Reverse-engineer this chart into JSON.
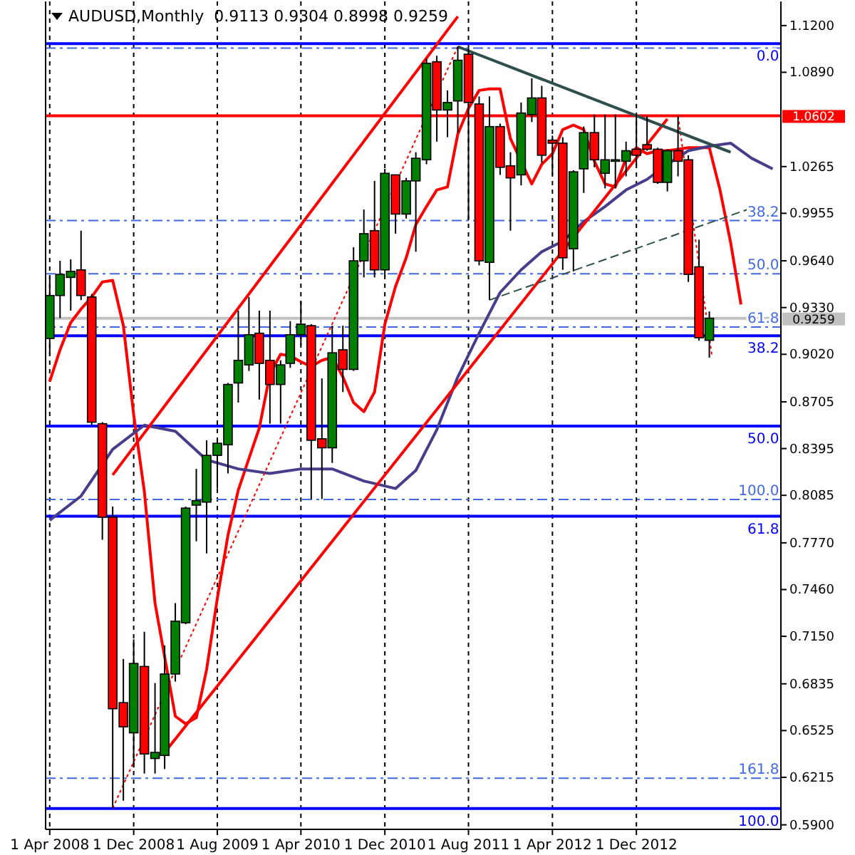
{
  "chart_data": {
    "type": "candlestick",
    "title": "AUDUSD,Monthly  0.9113 0.9304 0.8998 0.9259",
    "x": [
      "2008-04",
      "2008-05",
      "2008-06",
      "2008-07",
      "2008-08",
      "2008-09",
      "2008-10",
      "2008-11",
      "2008-12",
      "2009-01",
      "2009-02",
      "2009-03",
      "2009-04",
      "2009-05",
      "2009-06",
      "2009-07",
      "2009-08",
      "2009-09",
      "2009-10",
      "2009-11",
      "2009-12",
      "2010-01",
      "2010-02",
      "2010-03",
      "2010-04",
      "2010-05",
      "2010-06",
      "2010-07",
      "2010-08",
      "2010-09",
      "2010-10",
      "2010-11",
      "2010-12",
      "2011-01",
      "2011-02",
      "2011-03",
      "2011-04",
      "2011-05",
      "2011-06",
      "2011-07",
      "2011-08",
      "2011-09",
      "2011-10",
      "2011-11",
      "2011-12",
      "2012-01",
      "2012-02",
      "2012-03",
      "2012-04",
      "2012-05",
      "2012-06",
      "2012-07",
      "2012-08",
      "2012-09",
      "2012-10",
      "2012-11",
      "2012-12",
      "2013-01",
      "2013-02",
      "2013-03",
      "2013-04",
      "2013-05",
      "2013-06",
      "2013-07"
    ],
    "ohlc": [
      [
        0.9125,
        0.954,
        0.902,
        0.941
      ],
      [
        0.941,
        0.964,
        0.926,
        0.955
      ],
      [
        0.953,
        0.965,
        0.931,
        0.957
      ],
      [
        0.958,
        0.984,
        0.938,
        0.941
      ],
      [
        0.94,
        0.942,
        0.855,
        0.857
      ],
      [
        0.856,
        0.857,
        0.779,
        0.794
      ],
      [
        0.794,
        0.801,
        0.601,
        0.667
      ],
      [
        0.671,
        0.7,
        0.606,
        0.655
      ],
      [
        0.651,
        0.713,
        0.628,
        0.697
      ],
      [
        0.695,
        0.718,
        0.624,
        0.637
      ],
      [
        0.634,
        0.684,
        0.624,
        0.638
      ],
      [
        0.636,
        0.709,
        0.627,
        0.69
      ],
      [
        0.69,
        0.737,
        0.685,
        0.725
      ],
      [
        0.724,
        0.801,
        0.723,
        0.8
      ],
      [
        0.802,
        0.826,
        0.778,
        0.805
      ],
      [
        0.804,
        0.845,
        0.77,
        0.835
      ],
      [
        0.835,
        0.846,
        0.813,
        0.843
      ],
      [
        0.842,
        0.883,
        0.823,
        0.882
      ],
      [
        0.883,
        0.931,
        0.87,
        0.898
      ],
      [
        0.895,
        0.94,
        0.891,
        0.915
      ],
      [
        0.916,
        0.931,
        0.872,
        0.896
      ],
      [
        0.898,
        0.931,
        0.856,
        0.882
      ],
      [
        0.882,
        0.898,
        0.856,
        0.895
      ],
      [
        0.896,
        0.924,
        0.893,
        0.915
      ],
      [
        0.915,
        0.937,
        0.908,
        0.922
      ],
      [
        0.921,
        0.922,
        0.806,
        0.845
      ],
      [
        0.846,
        0.886,
        0.806,
        0.84
      ],
      [
        0.84,
        0.921,
        0.83,
        0.903
      ],
      [
        0.905,
        0.921,
        0.877,
        0.892
      ],
      [
        0.892,
        0.973,
        0.891,
        0.964
      ],
      [
        0.964,
        0.998,
        0.953,
        0.982
      ],
      [
        0.984,
        1.017,
        0.953,
        0.958
      ],
      [
        0.958,
        1.025,
        0.953,
        1.022
      ],
      [
        1.021,
        1.021,
        0.982,
        0.995
      ],
      [
        0.995,
        1.019,
        0.992,
        1.017
      ],
      [
        1.017,
        1.036,
        0.97,
        1.032
      ],
      [
        1.031,
        1.098,
        1.028,
        1.095
      ],
      [
        1.096,
        1.1,
        1.043,
        1.064
      ],
      [
        1.064,
        1.077,
        1.046,
        1.069
      ],
      [
        1.07,
        1.106,
        1.049,
        1.097
      ],
      [
        1.101,
        1.105,
        0.991,
        1.069
      ],
      [
        1.068,
        1.073,
        0.961,
        0.964
      ],
      [
        0.963,
        1.073,
        0.938,
        1.053
      ],
      [
        1.053,
        1.055,
        1.021,
        1.026
      ],
      [
        1.027,
        1.036,
        0.984,
        1.019
      ],
      [
        1.021,
        1.069,
        1.014,
        1.062
      ],
      [
        1.061,
        1.085,
        1.056,
        1.072
      ],
      [
        1.072,
        1.08,
        1.029,
        1.034
      ],
      [
        1.044,
        1.047,
        1.021,
        1.042
      ],
      [
        1.042,
        1.046,
        0.958,
        0.966
      ],
      [
        0.972,
        1.024,
        0.957,
        1.023
      ],
      [
        1.025,
        1.053,
        1.009,
        1.049
      ],
      [
        1.049,
        1.061,
        1.026,
        1.031
      ],
      [
        1.022,
        1.061,
        1.012,
        1.031
      ],
      [
        1.03,
        1.061,
        1.012,
        1.031
      ],
      [
        1.03,
        1.043,
        1.02,
        1.037
      ],
      [
        1.038,
        1.061,
        1.027,
        1.034
      ],
      [
        1.041,
        1.06,
        1.037,
        1.038
      ],
      [
        1.038,
        1.039,
        1.015,
        1.016
      ],
      [
        1.016,
        1.038,
        1.01,
        1.037
      ],
      [
        1.037,
        1.06,
        1.02,
        1.03
      ],
      [
        1.031,
        1.034,
        0.95,
        0.955
      ],
      [
        0.96,
        0.978,
        0.911,
        0.913
      ],
      [
        0.9113,
        0.9304,
        0.8998,
        0.9259
      ]
    ],
    "series": [
      {
        "type": "line",
        "color": "#ff0000",
        "line_style": "solid",
        "x": [
          "2008-04",
          "2008-05",
          "2008-06",
          "2008-07",
          "2008-08",
          "2008-09",
          "2008-10",
          "2008-11",
          "2008-12",
          "2009-01",
          "2009-02",
          "2009-04",
          "2009-05",
          "2009-06",
          "2009-07",
          "2009-08",
          "2009-09",
          "2009-10",
          "2009-11",
          "2009-12",
          "2010-01",
          "2010-02",
          "2010-03",
          "2010-04",
          "2010-05",
          "2010-06",
          "2010-07",
          "2010-08",
          "2010-09",
          "2010-10",
          "2010-11",
          "2010-12",
          "2011-01",
          "2011-02",
          "2011-03",
          "2011-04",
          "2011-05",
          "2011-06",
          "2011-07",
          "2011-08",
          "2011-09",
          "2011-10",
          "2011-11",
          "2011-12",
          "2012-02",
          "2012-03",
          "2012-04",
          "2012-05",
          "2012-06",
          "2012-07",
          "2012-08",
          "2012-09",
          "2012-10",
          "2012-11",
          "2012-12",
          "2013-01",
          "2013-02",
          "2013-03",
          "2013-04",
          "2013-05",
          "2013-06",
          "2013-07",
          "2013-08",
          "2013-09",
          "2013-10"
        ],
        "values": [
          0.884,
          0.905,
          0.923,
          0.932,
          0.94,
          0.95,
          0.951,
          0.921,
          0.862,
          0.811,
          0.737,
          0.662,
          0.657,
          0.661,
          0.693,
          0.74,
          0.782,
          0.812,
          0.833,
          0.853,
          0.889,
          0.902,
          0.901,
          0.897,
          0.894,
          0.898,
          0.9,
          0.887,
          0.87,
          0.864,
          0.877,
          0.922,
          0.947,
          0.966,
          0.988,
          1.0,
          1.011,
          1.013,
          1.048,
          1.065,
          1.077,
          1.078,
          1.078,
          1.045,
          1.015,
          1.028,
          1.035,
          1.051,
          1.054,
          1.051,
          1.03,
          1.015,
          1.013,
          1.032,
          1.039,
          1.035,
          1.037,
          1.037,
          1.038,
          1.039,
          1.039,
          1.039,
          1.011,
          0.976,
          0.935
        ]
      },
      {
        "type": "line",
        "color": "#483d8b",
        "line_style": "solid",
        "x": [
          "2008-04",
          "2008-07",
          "2008-10",
          "2009-01",
          "2009-04",
          "2009-07",
          "2009-10",
          "2010-01",
          "2010-04",
          "2010-07",
          "2010-10",
          "2011-01",
          "2011-03",
          "2011-05",
          "2011-07",
          "2011-09",
          "2011-11",
          "2012-01",
          "2012-03",
          "2012-05",
          "2012-07",
          "2012-09",
          "2012-11",
          "2013-01",
          "2013-03",
          "2013-05",
          "2013-07",
          "2013-09",
          "2013-11",
          "2014-01"
        ],
        "values": [
          0.792,
          0.808,
          0.839,
          0.855,
          0.851,
          0.832,
          0.826,
          0.823,
          0.826,
          0.826,
          0.818,
          0.813,
          0.825,
          0.852,
          0.887,
          0.916,
          0.943,
          0.958,
          0.97,
          0.977,
          0.99,
          1.0,
          1.011,
          1.018,
          1.028,
          1.037,
          1.04,
          1.042,
          1.032,
          1.025
        ]
      },
      {
        "type": "line",
        "color": "#ff0000",
        "line_style": "solid",
        "x": [
          "2008-10",
          "2011-07"
        ],
        "values": [
          0.822,
          1.126
        ]
      },
      {
        "type": "line",
        "color": "#ff0000",
        "line_style": "solid",
        "x": [
          "2009-03",
          "2013-03"
        ],
        "values": [
          0.638,
          1.058
        ]
      },
      {
        "type": "line",
        "color": "#ff0000",
        "line_style": "dotted",
        "x": [
          "2008-10",
          "2011-07"
        ],
        "values": [
          0.601,
          1.106
        ]
      },
      {
        "type": "line",
        "color": "#ff0000",
        "line_style": "dotted",
        "x": [
          "2013-04",
          "2013-07-08"
        ],
        "values": [
          1.06,
          0.902
        ]
      },
      {
        "type": "line",
        "color": "#2f4f4f",
        "line_style": "solid",
        "x": [
          "2011-07",
          "2013-09"
        ],
        "values": [
          1.106,
          1.036
        ]
      },
      {
        "type": "line",
        "color": "#2f4f4f",
        "line_style": "dashed",
        "x": [
          "2011-10",
          "2013-11"
        ],
        "values": [
          0.938,
          0.999
        ]
      }
    ],
    "ref_lines": [
      {
        "axis": "y",
        "value": 1.108,
        "color": "#0000ff",
        "line_style": "solid"
      },
      {
        "axis": "y",
        "value": 0.9143,
        "color": "#0000ff",
        "line_style": "solid"
      },
      {
        "axis": "y",
        "value": 0.8544,
        "color": "#0000ff",
        "line_style": "solid"
      },
      {
        "axis": "y",
        "value": 0.7946,
        "color": "#0000ff",
        "line_style": "solid"
      },
      {
        "axis": "y",
        "value": 0.6008,
        "color": "#0000ff",
        "line_style": "solid"
      },
      {
        "axis": "y",
        "value": 1.105,
        "color": "#4169e1",
        "line_style": "dashed"
      },
      {
        "axis": "y",
        "value": 0.9907,
        "color": "#4169e1",
        "line_style": "dashed"
      },
      {
        "axis": "y",
        "value": 0.9554,
        "color": "#4169e1",
        "line_style": "dashed"
      },
      {
        "axis": "y",
        "value": 0.9201,
        "color": "#4169e1",
        "line_style": "dashed"
      },
      {
        "axis": "y",
        "value": 0.8058,
        "color": "#4169e1",
        "line_style": "dashed"
      },
      {
        "axis": "y",
        "value": 0.6209,
        "color": "#4169e1",
        "line_style": "dashed"
      },
      {
        "axis": "y",
        "value": 1.0602,
        "label": "1.0602",
        "color": "#ff0000",
        "line_style": "solid"
      },
      {
        "axis": "y",
        "value": 0.9259,
        "label": "0.9259",
        "color": "#c0c0c0",
        "line_style": "solid"
      }
    ],
    "annotations": [
      {
        "text": "0.0",
        "x": "2014-01-20",
        "y": 1.108
      },
      {
        "text": "38.2",
        "x": "2014-01-20",
        "y": 0.9143
      },
      {
        "text": "50.0",
        "x": "2014-01-20",
        "y": 0.8544
      },
      {
        "text": "61.8",
        "x": "2014-01-20",
        "y": 0.7946
      },
      {
        "text": "100.0",
        "x": "2014-01-20",
        "y": 0.6008
      },
      {
        "text": "38.2",
        "x": "2014-01-20",
        "y": 0.9907
      },
      {
        "text": "50.0",
        "x": "2014-01-20",
        "y": 0.9554
      },
      {
        "text": "61.8",
        "x": "2014-01-20",
        "y": 0.9201
      },
      {
        "text": "100.0",
        "x": "2014-01-20",
        "y": 0.8058
      },
      {
        "text": "161.8",
        "x": "2014-01-20",
        "y": 0.6209
      }
    ],
    "xlim": [
      "2008-03-20",
      "2014-01-25"
    ],
    "xticks": [
      {
        "value": "2008-04-01",
        "label": "1 Apr 2008"
      },
      {
        "value": "2008-12-01",
        "label": "1 Dec 2008"
      },
      {
        "value": "2009-08-01",
        "label": "1 Aug 2009"
      },
      {
        "value": "2010-04-01",
        "label": "1 Apr 2010"
      },
      {
        "value": "2010-12-01",
        "label": "1 Dec 2010"
      },
      {
        "value": "2011-08-01",
        "label": "1 Aug 2011"
      },
      {
        "value": "2012-04-01",
        "label": "1 Apr 2012"
      },
      {
        "value": "2012-12-01",
        "label": "1 Dec 2012"
      }
    ],
    "ylim": [
      0.587,
      1.136
    ],
    "yticks": [
      {
        "value": 1.12,
        "label": "1.1200"
      },
      {
        "value": 1.089,
        "label": "1.0890"
      },
      {
        "value": 1.0265,
        "label": "1.0265"
      },
      {
        "value": 0.9955,
        "label": "0.9955"
      },
      {
        "value": 0.964,
        "label": "0.9640"
      },
      {
        "value": 0.933,
        "label": "0.9330"
      },
      {
        "value": 0.902,
        "label": "0.9020"
      },
      {
        "value": 0.8705,
        "label": "0.8705"
      },
      {
        "value": 0.8395,
        "label": "0.8395"
      },
      {
        "value": 0.8085,
        "label": "0.8085"
      },
      {
        "value": 0.777,
        "label": "0.7770"
      },
      {
        "value": 0.746,
        "label": "0.7460"
      },
      {
        "value": 0.715,
        "label": "0.7150"
      },
      {
        "value": 0.6835,
        "label": "0.6835"
      },
      {
        "value": 0.6525,
        "label": "0.6525"
      },
      {
        "value": 0.6215,
        "label": "0.6215"
      },
      {
        "value": 0.59,
        "label": "0.5900"
      }
    ],
    "grid": "x",
    "marker": "none"
  }
}
